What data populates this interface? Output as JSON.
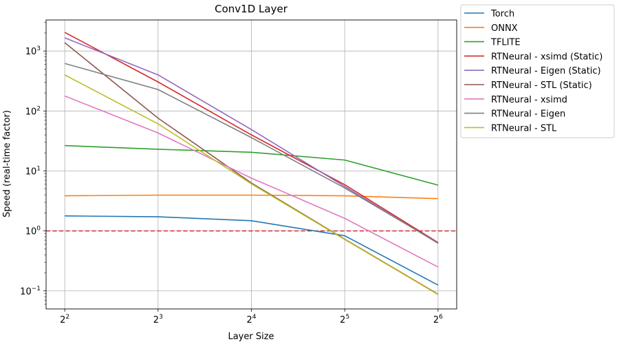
{
  "chart_data": {
    "type": "line",
    "title": "Conv1D Layer",
    "xlabel": "Layer Size",
    "ylabel": "Speed (real-time factor)",
    "xscale": "log2",
    "yscale": "log10",
    "x": [
      4,
      8,
      16,
      32,
      64
    ],
    "x_ticks": [
      {
        "base": "2",
        "exp": "2"
      },
      {
        "base": "2",
        "exp": "3"
      },
      {
        "base": "2",
        "exp": "4"
      },
      {
        "base": "2",
        "exp": "5"
      },
      {
        "base": "2",
        "exp": "6"
      }
    ],
    "y_ticks": [
      {
        "base": "10",
        "exp": "−1",
        "value": 0.1
      },
      {
        "base": "10",
        "exp": "0",
        "value": 1
      },
      {
        "base": "10",
        "exp": "1",
        "value": 10
      },
      {
        "base": "10",
        "exp": "2",
        "value": 100
      },
      {
        "base": "10",
        "exp": "3",
        "value": 1000
      }
    ],
    "ylim": [
      0.05,
      3300
    ],
    "grid": true,
    "legend_position": "outside-right",
    "reference_line": {
      "y": 1,
      "color": "#d62728",
      "style": "dashed"
    },
    "series": [
      {
        "name": "Torch",
        "color": "#1f77b4",
        "values": [
          1.78,
          1.72,
          1.48,
          0.83,
          0.125
        ]
      },
      {
        "name": "ONNX",
        "color": "#ff7f0e",
        "values": [
          3.85,
          3.95,
          3.95,
          3.85,
          3.45
        ]
      },
      {
        "name": "TFLITE",
        "color": "#2ca02c",
        "values": [
          26.5,
          23,
          20.5,
          15.2,
          5.8
        ]
      },
      {
        "name": "RTNeural - xsimd (Static)",
        "color": "#d62728",
        "values": [
          2050,
          305,
          40,
          5.9,
          0.64
        ]
      },
      {
        "name": "RTNeural - Eigen (Static)",
        "color": "#9467bd",
        "values": [
          1660,
          400,
          49,
          5.5,
          0.62
        ]
      },
      {
        "name": "RTNeural - STL (Static)",
        "color": "#8c564b",
        "values": [
          1380,
          76,
          6.3,
          0.73,
          0.088
        ]
      },
      {
        "name": "RTNeural - xsimd",
        "color": "#e377c2",
        "values": [
          178,
          43,
          7.6,
          1.62,
          0.25
        ]
      },
      {
        "name": "RTNeural - Eigen",
        "color": "#7f7f7f",
        "values": [
          620,
          228,
          36,
          5.2,
          0.63
        ]
      },
      {
        "name": "RTNeural - STL",
        "color": "#bcbd22",
        "values": [
          400,
          61,
          6.1,
          0.72,
          0.087
        ]
      }
    ]
  }
}
